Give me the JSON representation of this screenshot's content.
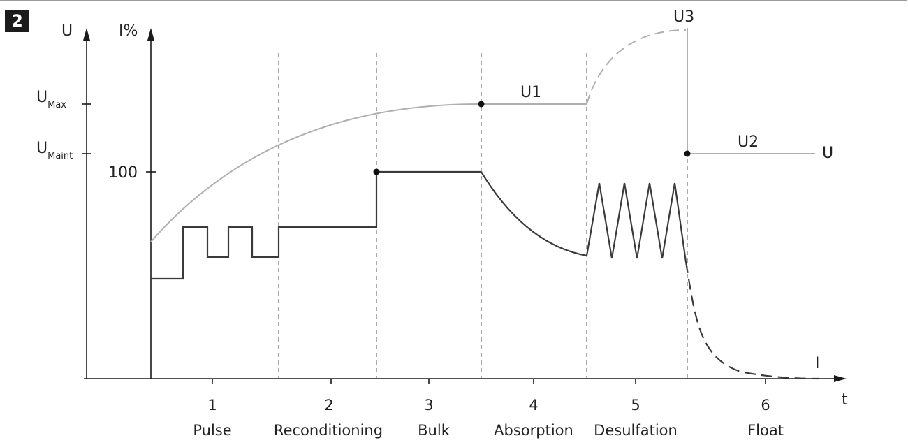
{
  "badge": "2",
  "axes": {
    "u_axis_label": "U",
    "i_axis_label": "I%",
    "time_label": "t",
    "u_max_main": "U",
    "u_max_sub": "Max",
    "u_maint_main": "U",
    "u_maint_sub": "Maint",
    "current_100": "100"
  },
  "curve_labels": {
    "u1": "U1",
    "u2": "U2",
    "u3": "U3",
    "u_end": "U",
    "i_end": "I"
  },
  "phases": [
    {
      "number": "1",
      "name": "Pulse"
    },
    {
      "number": "2",
      "name": "Reconditioning"
    },
    {
      "number": "3",
      "name": "Bulk"
    },
    {
      "number": "4",
      "name": "Absorption"
    },
    {
      "number": "5",
      "name": "Desulfation"
    },
    {
      "number": "6",
      "name": "Float"
    }
  ]
}
